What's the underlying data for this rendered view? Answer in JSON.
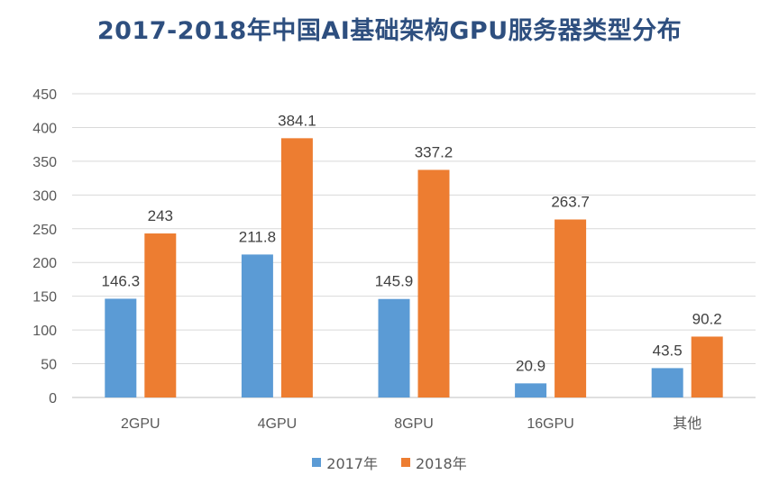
{
  "title": "2017-2018年中国AI基础架构GPU服务器类型分布",
  "chart_data": {
    "type": "bar",
    "title": "2017-2018年中国AI基础架构GPU服务器类型分布",
    "categories": [
      "2GPU",
      "4GPU",
      "8GPU",
      "16GPU",
      "其他"
    ],
    "series": [
      {
        "name": "2017年",
        "color": "#5b9bd5",
        "values": [
          146.3,
          211.8,
          145.9,
          20.9,
          43.5
        ],
        "labels": [
          "146.3",
          "211.8",
          "145.9",
          "20.9",
          "43.5"
        ]
      },
      {
        "name": "2018年",
        "color": "#ed7d31",
        "values": [
          243,
          384.1,
          337.2,
          263.7,
          90.2
        ],
        "labels": [
          "243",
          "384.1",
          "337.2",
          "263.7",
          "90.2"
        ]
      }
    ],
    "ylim": [
      0,
      450
    ],
    "yticks": [
      0,
      50,
      100,
      150,
      200,
      250,
      300,
      350,
      400,
      450
    ],
    "grid": true,
    "legend": "bottom-center",
    "xlabel": "",
    "ylabel": ""
  }
}
